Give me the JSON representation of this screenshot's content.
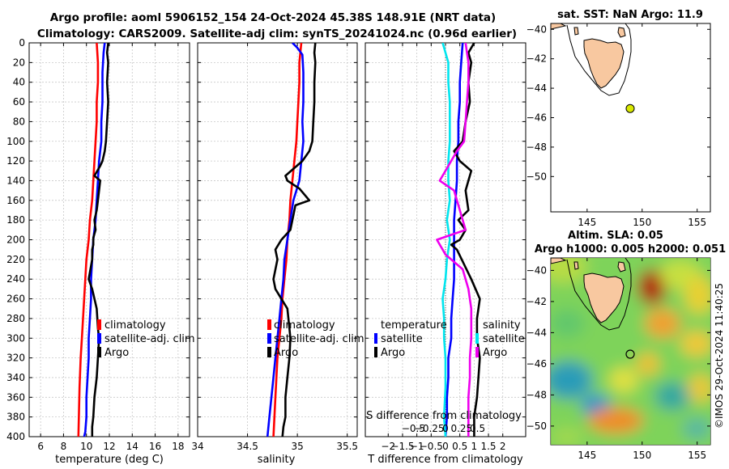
{
  "title": {
    "line1": "Argo profile: aoml 5906152_154 24-Oct-2024 45.38S 148.91E (NRT data)",
    "line2": "Climatology: CARS2009. Satellite-adj clim: synTS_20241024.nc (0.96d earlier)"
  },
  "colors": {
    "climatology": "#ff0000",
    "satellite": "#0000ff",
    "argo": "#000000",
    "sat_salinity": "#00e5ee",
    "argo_salinity": "#ee00ee",
    "land": "#f8c8a0",
    "map_bg": "#ffffff",
    "zero_line": "#555555"
  },
  "depth_axis": {
    "ticks": [
      0,
      20,
      40,
      60,
      80,
      100,
      120,
      140,
      160,
      180,
      200,
      220,
      240,
      260,
      280,
      300,
      320,
      340,
      360,
      380,
      400
    ],
    "range": [
      0,
      400
    ]
  },
  "chart_data": [
    {
      "id": "temperature",
      "type": "line",
      "xlabel": "temperature (deg C)",
      "ylabel": "depth",
      "xlim": [
        5,
        19
      ],
      "xticks": [
        6,
        8,
        10,
        12,
        14,
        16,
        18
      ],
      "ylim": [
        0,
        400
      ],
      "legend": [
        "climatology",
        "satellite-adj. clim",
        "Argo"
      ],
      "series": [
        {
          "name": "climatology",
          "color_key": "climatology",
          "x": [
            10.9,
            11.0,
            11.0,
            10.9,
            10.9,
            10.8,
            10.7,
            10.6,
            10.5,
            10.3,
            10.2,
            10.0,
            9.9,
            9.8,
            9.7,
            9.6,
            9.5,
            9.4,
            9.3
          ],
          "depth": [
            0,
            20,
            40,
            60,
            80,
            100,
            120,
            140,
            160,
            180,
            200,
            220,
            240,
            260,
            280,
            300,
            320,
            350,
            400
          ]
        },
        {
          "name": "satellite-adj. clim",
          "color_key": "satellite",
          "x": [
            11.6,
            11.5,
            11.4,
            11.4,
            11.3,
            11.3,
            11.1,
            11.0,
            10.9,
            10.8,
            10.6,
            10.5,
            10.4,
            10.4,
            10.3,
            10.2,
            10.2,
            10.1,
            10.0,
            10.0,
            9.9,
            9.8
          ],
          "depth": [
            0,
            10,
            30,
            60,
            80,
            100,
            120,
            140,
            160,
            180,
            200,
            220,
            240,
            260,
            280,
            300,
            320,
            340,
            360,
            380,
            395,
            400
          ]
        },
        {
          "name": "Argo",
          "color_key": "argo",
          "x": [
            11.9,
            11.8,
            11.9,
            11.8,
            11.9,
            11.8,
            11.7,
            11.6,
            11.4,
            11.2,
            10.7,
            11.2,
            11.0,
            10.9,
            10.7,
            10.8,
            10.6,
            10.6,
            10.5,
            10.5,
            10.2,
            10.5,
            10.9,
            11.0,
            11.1,
            11.0,
            10.9,
            10.7,
            10.6,
            10.5,
            10.5
          ],
          "depth": [
            0,
            10,
            20,
            40,
            60,
            80,
            100,
            110,
            120,
            125,
            135,
            140,
            160,
            170,
            180,
            190,
            198,
            205,
            210,
            220,
            240,
            250,
            270,
            290,
            300,
            320,
            340,
            360,
            380,
            390,
            400
          ]
        }
      ]
    },
    {
      "id": "salinity",
      "type": "line",
      "xlabel": "salinity",
      "ylabel": "depth",
      "xlim": [
        34,
        35.6
      ],
      "xticks": [
        34,
        34.5,
        35,
        35.5
      ],
      "ylim": [
        0,
        400
      ],
      "legend": [
        "climatology",
        "satellite-adj. clim",
        "Argo"
      ],
      "series": [
        {
          "name": "climatology",
          "color_key": "climatology",
          "x": [
            35.04,
            35.02,
            35.02,
            35.01,
            35.0,
            34.99,
            34.97,
            34.95,
            34.93,
            34.92,
            34.9,
            34.89,
            34.87,
            34.85,
            34.84,
            34.82,
            34.8,
            34.78,
            34.76
          ],
          "depth": [
            0,
            20,
            40,
            60,
            80,
            100,
            120,
            140,
            160,
            180,
            200,
            220,
            240,
            260,
            280,
            300,
            320,
            360,
            400
          ]
        },
        {
          "name": "satellite-adj. clim",
          "color_key": "satellite",
          "x": [
            34.95,
            35.0,
            35.05,
            35.06,
            35.06,
            35.05,
            35.06,
            35.04,
            35.02,
            34.99,
            34.96,
            34.93,
            34.9,
            34.87,
            34.86,
            34.84,
            34.82,
            34.8,
            34.78,
            34.76,
            34.74,
            34.72,
            34.7
          ],
          "depth": [
            0,
            5,
            12,
            30,
            60,
            80,
            100,
            120,
            140,
            150,
            160,
            180,
            200,
            220,
            240,
            260,
            280,
            300,
            320,
            340,
            360,
            380,
            400
          ]
        },
        {
          "name": "Argo",
          "color_key": "argo",
          "x": [
            35.18,
            35.17,
            35.18,
            35.17,
            35.17,
            35.16,
            35.15,
            35.12,
            35.05,
            34.88,
            34.9,
            35.02,
            35.12,
            34.98,
            34.95,
            34.93,
            34.84,
            34.78,
            34.8,
            34.76,
            34.78,
            34.84,
            34.9,
            34.92,
            34.93,
            34.92,
            34.9,
            34.88,
            34.88,
            34.86,
            34.85
          ],
          "depth": [
            0,
            10,
            20,
            40,
            60,
            80,
            100,
            110,
            120,
            135,
            140,
            148,
            160,
            165,
            180,
            190,
            200,
            210,
            220,
            240,
            250,
            260,
            270,
            290,
            300,
            320,
            340,
            360,
            380,
            390,
            400
          ]
        }
      ]
    },
    {
      "id": "differences",
      "type": "line",
      "xlabel": "T difference from climatology",
      "xlabel_top": "S difference from climatology",
      "xlim": [
        -2.8,
        2.8
      ],
      "xticks": [
        -2,
        -1.5,
        -1,
        -0.5,
        0,
        0.5,
        1,
        1.5,
        2
      ],
      "xticks_s": [
        -0.5,
        -0.25,
        0,
        0.25,
        0.5
      ],
      "ylim": [
        0,
        400
      ],
      "legend_left_title": "temperature",
      "legend_right_title": "salinity",
      "legend_left": [
        "satellite",
        "Argo"
      ],
      "legend_right": [
        "satellite",
        "Argo"
      ],
      "series": [
        {
          "name": "T satellite",
          "color_key": "satellite",
          "x": [
            0.6,
            0.55,
            0.5,
            0.5,
            0.45,
            0.45,
            0.4,
            0.4,
            0.35,
            0.3,
            0.3,
            0.3,
            0.3,
            0.25,
            0.2,
            0.2,
            0.1,
            0.1,
            0.05,
            0.05,
            0.0
          ],
          "depth": [
            0,
            20,
            40,
            60,
            80,
            100,
            120,
            140,
            160,
            180,
            200,
            220,
            240,
            260,
            280,
            300,
            320,
            340,
            360,
            380,
            400
          ]
        },
        {
          "name": "T Argo",
          "color_key": "argo",
          "x": [
            1.0,
            0.8,
            0.9,
            0.8,
            0.85,
            0.7,
            0.6,
            0.3,
            0.5,
            0.9,
            0.8,
            0.7,
            0.8,
            0.45,
            0.7,
            0.5,
            0.2,
            0.4,
            0.9,
            1.2,
            1.1,
            1.1,
            1.2,
            1.1,
            1.0,
            1.0
          ],
          "depth": [
            0,
            10,
            20,
            40,
            60,
            80,
            100,
            110,
            120,
            130,
            140,
            150,
            170,
            180,
            190,
            200,
            205,
            210,
            240,
            260,
            280,
            300,
            320,
            360,
            380,
            400
          ]
        },
        {
          "name": "S satellite",
          "color_key": "sat_salinity",
          "x": [
            -0.1,
            0.0,
            0.1,
            0.1,
            0.15,
            0.15,
            0.15,
            0.1,
            0.1,
            0.15,
            0.05,
            0.15,
            0.05,
            0.0,
            -0.1,
            -0.05,
            -0.05,
            0.0,
            0.0,
            -0.05,
            0.0
          ],
          "depth": [
            0,
            10,
            20,
            40,
            60,
            80,
            100,
            120,
            140,
            160,
            180,
            200,
            220,
            240,
            260,
            280,
            300,
            320,
            350,
            380,
            400
          ]
        },
        {
          "name": "S Argo",
          "color_key": "argo_salinity",
          "x": [
            0.7,
            0.75,
            0.8,
            0.8,
            0.75,
            0.7,
            0.65,
            0.4,
            -0.2,
            0.3,
            0.5,
            0.6,
            0.7,
            0.2,
            -0.3,
            -0.1,
            0.0,
            0.2,
            0.6,
            0.8,
            0.9,
            0.9,
            0.85,
            0.85,
            0.8,
            0.8,
            0.8
          ],
          "depth": [
            0,
            10,
            20,
            40,
            60,
            80,
            100,
            110,
            140,
            150,
            170,
            180,
            190,
            195,
            200,
            210,
            215,
            220,
            230,
            250,
            270,
            300,
            320,
            340,
            360,
            380,
            400
          ]
        }
      ]
    }
  ],
  "map_top": {
    "title": "sat. SST: NaN Argo: 11.9",
    "xticks": [
      145,
      150,
      155
    ],
    "yticks": [
      -40,
      -42,
      -44,
      -46,
      -48,
      -50
    ],
    "lon": [
      141.7,
      156.2
    ],
    "lat": [
      -52.4,
      -39.6
    ],
    "float": {
      "lon": 148.91,
      "lat": -45.38
    }
  },
  "map_bottom": {
    "title1": "Altim. SLA: 0.05",
    "title2": "Argo h1000: 0.005 h2000: 0.051",
    "xticks": [
      145,
      150,
      155
    ],
    "yticks": [
      -40,
      -42,
      -44,
      -46,
      -48,
      -50
    ],
    "lon": [
      141.7,
      156.2
    ],
    "lat": [
      -51.2,
      -39.2
    ],
    "float": {
      "lon": 148.91,
      "lat": -45.38
    }
  },
  "credit": "©IMOS 29-Oct-2024 11:40:25"
}
